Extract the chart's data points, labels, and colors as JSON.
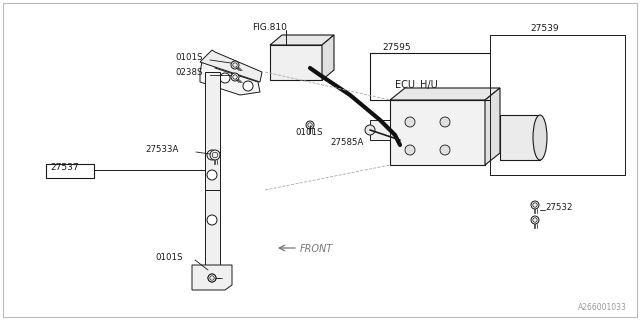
{
  "bg_color": "#ffffff",
  "line_color": "#1a1a1a",
  "gray_line": "#888888",
  "fig_size": [
    6.4,
    3.2
  ],
  "dpi": 100,
  "border_color": "#bbbbbb",
  "labels": {
    "fig810": "FIG.810",
    "27595": "27595",
    "27539": "27539",
    "27585A": "27585A",
    "ecu": "ECU",
    "hu": "H/U",
    "27533A": "27533A",
    "27537": "27537",
    "27532": "27532",
    "0101S_1": "0101S",
    "0101S_2": "0101S",
    "0101S_3": "0101S",
    "0238S": "0238S",
    "front": "FRONT",
    "part_num": "A266001033"
  }
}
